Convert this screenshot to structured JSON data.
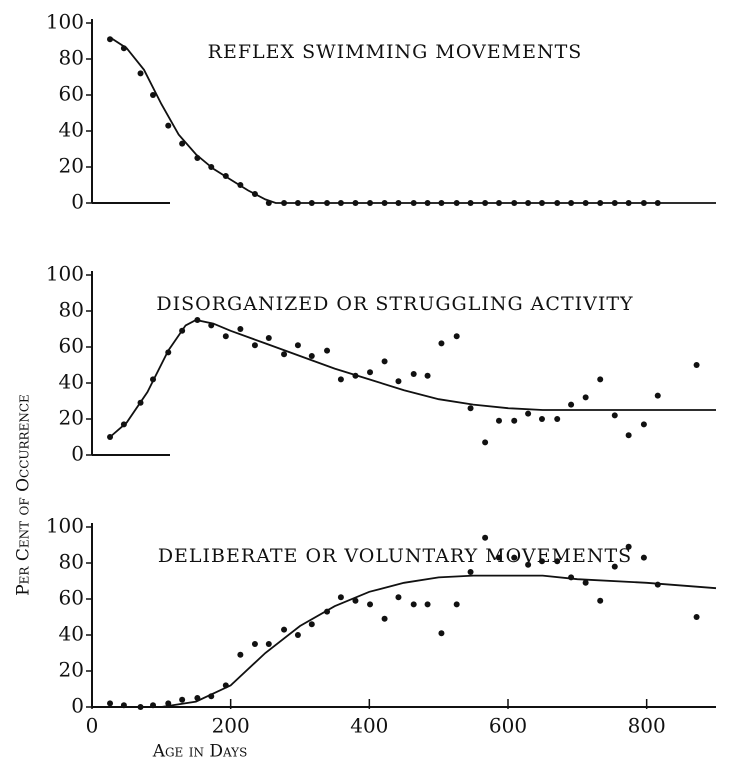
{
  "chart_data": [
    {
      "type": "scatter",
      "title": "REFLEX SWIMMING MOVEMENTS",
      "color": "#111111",
      "x": [
        26,
        46,
        70,
        88,
        110,
        130,
        152,
        172,
        193,
        214,
        235,
        255,
        277,
        297,
        317,
        339,
        359,
        380,
        401,
        422,
        442,
        464,
        484,
        504,
        526,
        546,
        567,
        587,
        609,
        629,
        649,
        671,
        691,
        712,
        733,
        754,
        774,
        796,
        816
      ],
      "values": [
        91,
        86,
        72,
        60,
        43,
        33,
        25,
        20,
        15,
        10,
        5,
        0,
        0,
        0,
        0,
        0,
        0,
        0,
        0,
        0,
        0,
        0,
        0,
        0,
        0,
        0,
        0,
        0,
        0,
        0,
        0,
        0,
        0,
        0,
        0,
        0,
        0,
        0,
        0
      ],
      "curve_x": [
        26,
        50,
        75,
        100,
        125,
        150,
        175,
        200,
        225,
        250,
        265,
        900
      ],
      "curve_values": [
        92,
        86,
        74,
        55,
        38,
        27,
        19,
        13,
        7,
        2,
        0,
        0
      ],
      "xlim": [
        0,
        900
      ],
      "ylim": [
        0,
        100
      ],
      "yticks": [
        0,
        20,
        40,
        60,
        80,
        100
      ]
    },
    {
      "type": "scatter",
      "title": "DISORGANIZED OR STRUGGLING ACTIVITY",
      "color": "#111111",
      "ylabel": "Per Cent of Occurrence",
      "x": [
        26,
        46,
        70,
        88,
        110,
        130,
        152,
        172,
        193,
        214,
        235,
        255,
        277,
        297,
        317,
        339,
        359,
        380,
        401,
        422,
        442,
        464,
        484,
        504,
        526,
        546,
        567,
        587,
        609,
        629,
        649,
        671,
        691,
        712,
        733,
        754,
        774,
        796,
        816,
        872
      ],
      "values": [
        10,
        17,
        29,
        42,
        57,
        69,
        75,
        72,
        66,
        70,
        61,
        65,
        56,
        61,
        55,
        58,
        42,
        44,
        46,
        52,
        41,
        45,
        44,
        62,
        66,
        26,
        7,
        19,
        19,
        23,
        20,
        20,
        28,
        32,
        42,
        22,
        11,
        17,
        33,
        50
      ],
      "curve_x": [
        26,
        50,
        80,
        110,
        135,
        150,
        175,
        200,
        250,
        300,
        350,
        400,
        450,
        500,
        550,
        600,
        650,
        700,
        800,
        900
      ],
      "curve_values": [
        10,
        18,
        35,
        58,
        72,
        75,
        73,
        69,
        62,
        55,
        48,
        42,
        36,
        31,
        28,
        26,
        25,
        25,
        25,
        25
      ],
      "xlim": [
        0,
        900
      ],
      "ylim": [
        0,
        100
      ],
      "yticks": [
        0,
        20,
        40,
        60,
        80,
        100
      ]
    },
    {
      "type": "scatter",
      "title": "DELIBERATE OR VOLUNTARY MOVEMENTS",
      "color": "#111111",
      "xlabel": "Age in Days",
      "x": [
        26,
        46,
        70,
        88,
        110,
        130,
        152,
        172,
        193,
        214,
        235,
        255,
        277,
        297,
        317,
        339,
        359,
        380,
        401,
        422,
        442,
        464,
        484,
        504,
        526,
        546,
        567,
        587,
        609,
        629,
        649,
        671,
        691,
        712,
        733,
        754,
        774,
        796,
        816,
        872
      ],
      "values": [
        2,
        1,
        0,
        1,
        2,
        4,
        5,
        6,
        12,
        29,
        35,
        35,
        43,
        40,
        46,
        53,
        61,
        59,
        57,
        49,
        61,
        57,
        57,
        41,
        57,
        75,
        94,
        83,
        83,
        79,
        81,
        81,
        72,
        69,
        59,
        78,
        89,
        83,
        68,
        50
      ],
      "curve_x": [
        26,
        100,
        150,
        200,
        250,
        300,
        350,
        400,
        450,
        500,
        550,
        600,
        650,
        700,
        800,
        900
      ],
      "curve_values": [
        0,
        0,
        3,
        12,
        30,
        45,
        56,
        64,
        69,
        72,
        73,
        73,
        73,
        71,
        69,
        66
      ],
      "xlim": [
        0,
        900
      ],
      "ylim": [
        0,
        100
      ],
      "yticks": [
        0,
        20,
        40,
        60,
        80,
        100
      ],
      "xticks": [
        0,
        200,
        400,
        600,
        800
      ]
    }
  ]
}
